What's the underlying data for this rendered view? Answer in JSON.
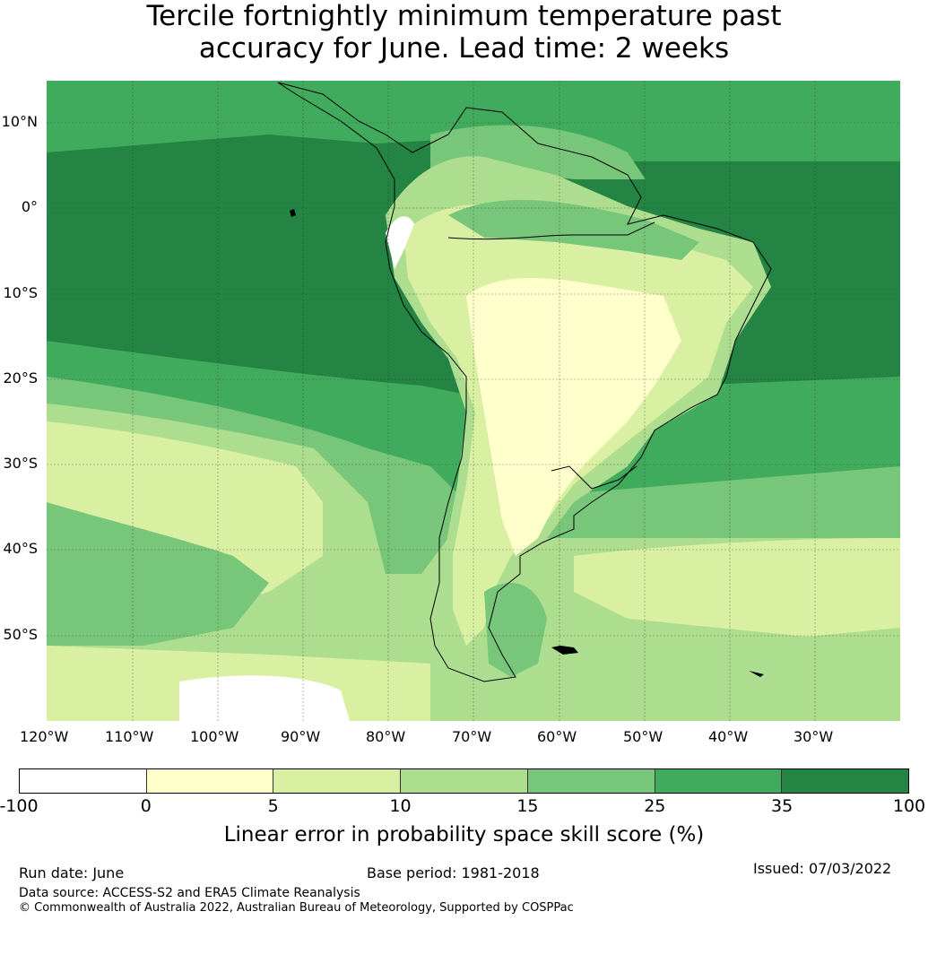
{
  "title_line1": "Tercile fortnightly minimum temperature past",
  "title_line2": "accuracy for June. Lead time: 2 weeks",
  "latitude_labels": [
    "10°N",
    "0°",
    "10°S",
    "20°S",
    "30°S",
    "40°S",
    "50°S"
  ],
  "longitude_labels": [
    "120°W",
    "110°W",
    "100°W",
    "90°W",
    "80°W",
    "70°W",
    "60°W",
    "50°W",
    "40°W",
    "30°W"
  ],
  "colorbar": {
    "ticks": [
      "-100",
      "0",
      "5",
      "10",
      "15",
      "25",
      "35",
      "100"
    ],
    "colors": [
      "#ffffff",
      "#ffffcc",
      "#d9f0a3",
      "#addd8e",
      "#78c679",
      "#41ab5d",
      "#238443"
    ],
    "label": "Linear error in probability space skill score (%)"
  },
  "footer": {
    "run_date": "Run date: June",
    "base_period": "Base period: 1981-2018",
    "issued": "Issued: 07/03/2022",
    "data_source": "Data source: ACCESS-S2 and ERA5 Climate Reanalysis",
    "copyright": "© Commonwealth of Australia 2022, Australian Bureau of Meteorology, Supported by COSPPac"
  }
}
